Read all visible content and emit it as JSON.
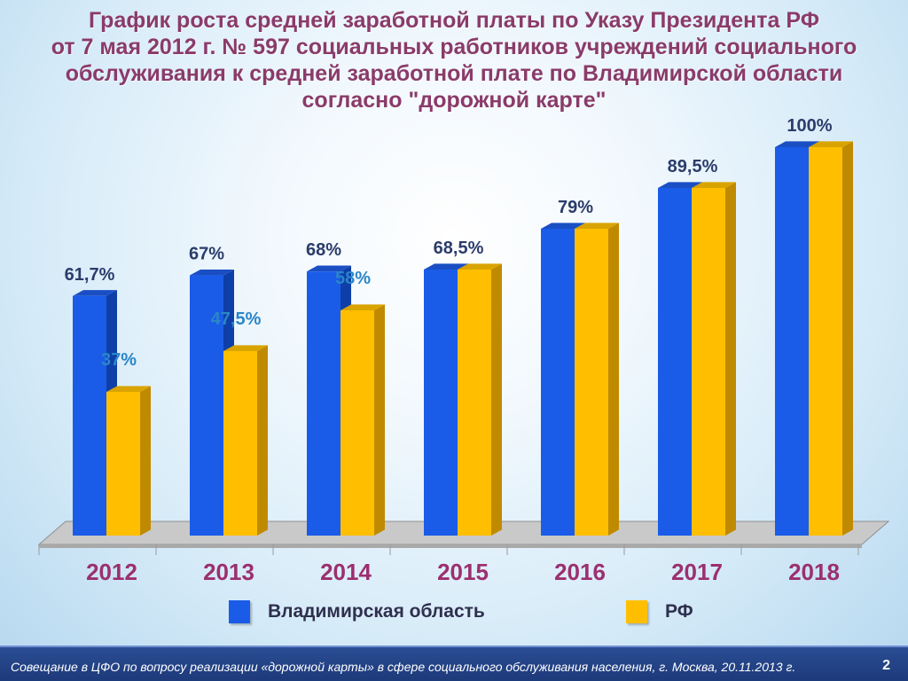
{
  "title_lines": [
    "График роста средней заработной платы по Указу Президента РФ",
    "от 7 мая 2012 г. № 597 социальных работников учреждений социального",
    "обслуживания к средней заработной плате по Владимирской области",
    "согласно \"дорожной карте\""
  ],
  "chart_data": {
    "type": "bar",
    "categories": [
      "2012",
      "2013",
      "2014",
      "2015",
      "2016",
      "2017",
      "2018"
    ],
    "series": [
      {
        "name": "Владимирская область",
        "values": [
          61.7,
          67,
          68,
          68.5,
          79,
          89.5,
          100
        ],
        "labels": [
          "61,7%",
          "67%",
          "68%",
          "68,5%",
          "79%",
          "89,5%",
          "100%"
        ],
        "color": "#1a5ce8",
        "side_color": "#0e3fa8",
        "top_color": "#1a4fc4"
      },
      {
        "name": "РФ",
        "values": [
          37,
          47.5,
          58,
          68.5,
          79,
          89.5,
          100
        ],
        "labels": [
          "37%",
          "47,5%",
          "58%",
          "",
          "",
          "",
          ""
        ],
        "color": "#ffbf00",
        "side_color": "#c08a00",
        "top_color": "#d9a400"
      }
    ],
    "ylim": [
      0,
      100
    ],
    "grid": false,
    "legend": "bottom",
    "category_label_color": "#9c2f70",
    "rf_label_color": "#2a86c8"
  },
  "legend": [
    {
      "label": "Владимирская область",
      "color": "#1a5ce8"
    },
    {
      "label": "РФ",
      "color": "#ffbf00"
    }
  ],
  "footer": {
    "text": "Совещание в ЦФО по вопросу реализации «дорожной карты» в сфере социального обслуживания населения, г. Москва, 20.11.2013 г.",
    "page": "2"
  }
}
